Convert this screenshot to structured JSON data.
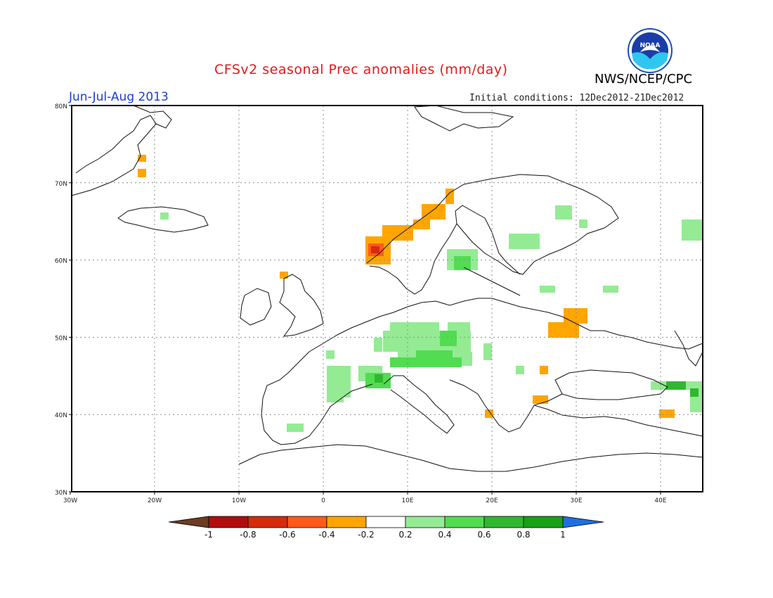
{
  "header": {
    "title": "CFSv2 seasonal Prec anomalies (mm/day)",
    "organization": "NWS/NCEP/CPC",
    "period": "Jun-Jul-Aug 2013",
    "initial_conditions": "Initial conditions: 12Dec2012-21Dec2012",
    "logo_text": "NOAA"
  },
  "map": {
    "lat_labels": [
      "80N",
      "70N",
      "60N",
      "50N",
      "40N",
      "30N"
    ],
    "lon_labels": [
      "30W",
      "20W",
      "10W",
      "0",
      "10E",
      "20E",
      "30E",
      "40E"
    ],
    "grid": "dotted"
  },
  "colorbar": {
    "labels": [
      "-1",
      "-0.8",
      "-0.6",
      "-0.4",
      "-0.2",
      "0.2",
      "0.4",
      "0.6",
      "0.8",
      "1"
    ],
    "colors": [
      "#6e3b23",
      "#b10d0d",
      "#d62a0c",
      "#ff5a1a",
      "#ffa500",
      "#ffffff",
      "#94eb94",
      "#52dc52",
      "#2fb82f",
      "#16a116",
      "#1f6fe0"
    ]
  },
  "colors": {
    "title": "#e11a1a",
    "period": "#1b3dd6",
    "positive_weak": "#94eb94",
    "positive_moderate": "#52dc52",
    "positive_strong": "#2fb82f",
    "negative_weak": "#ffa500",
    "negative_moderate": "#ff5a1a",
    "negative_strong": "#d62a0c"
  }
}
